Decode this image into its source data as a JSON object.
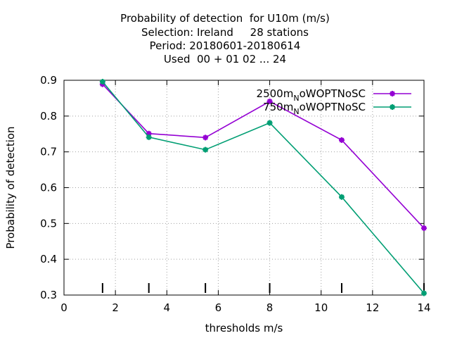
{
  "chart_data": {
    "type": "line",
    "title_lines": [
      "Probability of detection  for U10m (m/s)",
      "Selection: Ireland     28 stations",
      "Period: 20180601-20180614",
      "Used  00 + 01 02 ... 24"
    ],
    "xlabel": "thresholds m/s",
    "ylabel": "Probability of detection",
    "xlim": [
      0,
      14
    ],
    "ylim": [
      0.3,
      0.9
    ],
    "xticks": [
      0,
      2,
      4,
      6,
      8,
      10,
      12,
      14
    ],
    "yticks": [
      0.3,
      0.4,
      0.5,
      0.6,
      0.7,
      0.8,
      0.9
    ],
    "grid": true,
    "legend_position": "top-right",
    "threshold_markers": [
      1.5,
      3.3,
      5.5,
      8.0,
      10.8,
      14.0
    ],
    "series": [
      {
        "name": "2500m_NoWOPTNoSC",
        "legend_main": "2500m",
        "legend_sub": "N",
        "legend_tail": "oWOPTNoSC",
        "color": "#9400d3",
        "x": [
          1.5,
          3.3,
          5.5,
          8.0,
          10.8,
          14.0
        ],
        "y": [
          0.889,
          0.751,
          0.74,
          0.841,
          0.733,
          0.487
        ]
      },
      {
        "name": "750m_NoWOPTNoSC",
        "legend_main": "750m",
        "legend_sub": "N",
        "legend_tail": "oWOPTNoSC",
        "color": "#009e73",
        "x": [
          1.5,
          3.3,
          5.5,
          8.0,
          10.8,
          14.0
        ],
        "y": [
          0.896,
          0.741,
          0.706,
          0.781,
          0.574,
          0.305
        ]
      }
    ]
  }
}
